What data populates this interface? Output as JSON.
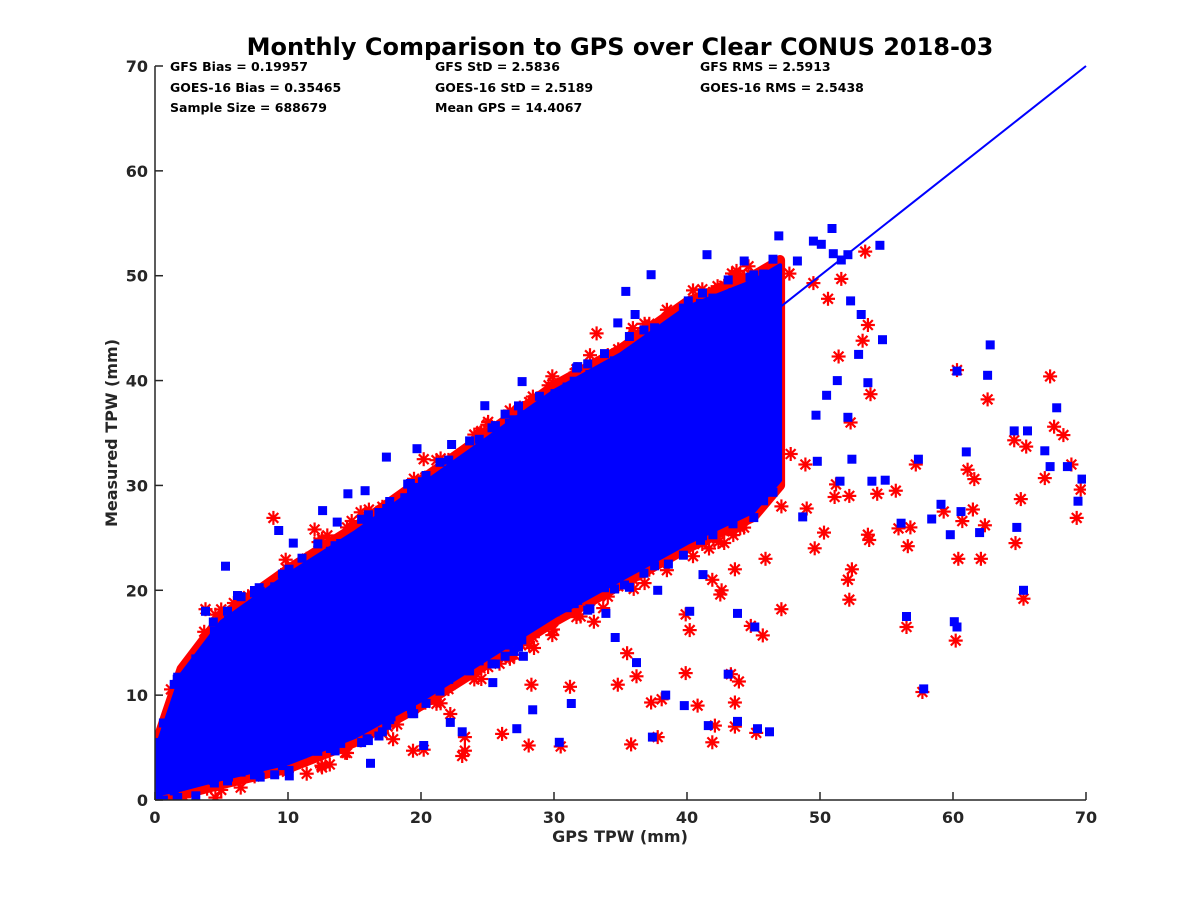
{
  "chart_data": {
    "type": "scatter",
    "title": "Monthly Comparison to GPS over Clear CONUS 2018-03",
    "xlabel": "GPS TPW (mm)",
    "ylabel": "Measured TPW (mm)",
    "xlim": [
      0,
      70
    ],
    "ylim": [
      0,
      70
    ],
    "xticks": [
      "0",
      "10",
      "20",
      "30",
      "40",
      "50",
      "60",
      "70"
    ],
    "yticks": [
      "0",
      "10",
      "20",
      "30",
      "40",
      "50",
      "60",
      "70"
    ],
    "grid": false,
    "legend": "none",
    "reference_line": {
      "name": "1:1 line",
      "x": [
        0,
        70
      ],
      "y": [
        0,
        70
      ],
      "color": "#0000ff"
    },
    "stats": {
      "gfs_bias": "GFS Bias = 0.19957",
      "gfs_std": "GFS StD = 2.5836",
      "gfs_rms": "GFS RMS = 2.5913",
      "goes_bias": "GOES-16 Bias = 0.35465",
      "goes_std": "GOES-16 StD = 2.5189",
      "goes_rms": "GOES-16 RMS = 2.5438",
      "sample_size": "Sample Size = 688679",
      "mean_gps": "Mean GPS = 14.4067"
    },
    "series": [
      {
        "name": "GFS",
        "marker": "asterisk",
        "color": "#ff0000",
        "dense_band": {
          "x": [
            0,
            2,
            5,
            10,
            15,
            20,
            25,
            30,
            35,
            40,
            45,
            47
          ],
          "lower": [
            0,
            0.5,
            1.5,
            3,
            5.5,
            9,
            13,
            17,
            20.5,
            24,
            27,
            30
          ],
          "upper": [
            5,
            12.5,
            17.5,
            22,
            26,
            30.5,
            35,
            39.5,
            43,
            47.5,
            50,
            51.5
          ]
        },
        "points": [
          [
            8.9,
            26.9
          ],
          [
            12,
            25.8
          ],
          [
            3.8,
            18.2
          ],
          [
            20.2,
            32.5
          ],
          [
            25,
            35.8
          ],
          [
            33.2,
            44.5
          ],
          [
            42.3,
            49
          ],
          [
            44.8,
            50.1
          ],
          [
            47.7,
            50.2
          ],
          [
            49.5,
            49.3
          ],
          [
            51.6,
            49.7
          ],
          [
            53.4,
            52.3
          ],
          [
            53.6,
            45.3
          ],
          [
            50.6,
            47.8
          ],
          [
            51.4,
            42.3
          ],
          [
            52.3,
            36
          ],
          [
            53.2,
            43.8
          ],
          [
            53.8,
            38.7
          ],
          [
            45.9,
            23
          ],
          [
            47.1,
            28
          ],
          [
            47.8,
            33
          ],
          [
            48.9,
            32
          ],
          [
            49,
            27.8
          ],
          [
            49.6,
            24
          ],
          [
            50.3,
            25.5
          ],
          [
            51.1,
            28.9
          ],
          [
            51.2,
            30.1
          ],
          [
            52.2,
            29
          ],
          [
            52.4,
            22
          ],
          [
            52.2,
            19.1
          ],
          [
            52.1,
            21
          ],
          [
            53.6,
            25.3
          ],
          [
            53.7,
            24.8
          ],
          [
            54.3,
            29.2
          ],
          [
            55.7,
            29.5
          ],
          [
            55.9,
            25.9
          ],
          [
            56.5,
            16.5
          ],
          [
            56.6,
            24.2
          ],
          [
            57.2,
            32
          ],
          [
            57.7,
            10.3
          ],
          [
            59.3,
            27.5
          ],
          [
            60.2,
            15.2
          ],
          [
            60.4,
            23
          ],
          [
            60.3,
            41
          ],
          [
            60.7,
            26.6
          ],
          [
            61.1,
            31.5
          ],
          [
            61.5,
            27.7
          ],
          [
            61.6,
            30.6
          ],
          [
            62.1,
            23
          ],
          [
            62.4,
            26.2
          ],
          [
            62.6,
            38.2
          ],
          [
            64.7,
            24.5
          ],
          [
            64.6,
            34.3
          ],
          [
            65.1,
            28.7
          ],
          [
            65.3,
            19.2
          ],
          [
            65.5,
            33.7
          ],
          [
            66.9,
            30.7
          ],
          [
            67.3,
            40.4
          ],
          [
            67.6,
            35.6
          ],
          [
            68.3,
            34.8
          ],
          [
            68.9,
            32
          ],
          [
            69.3,
            26.9
          ],
          [
            69.6,
            29.6
          ],
          [
            56.8,
            26
          ],
          [
            41.5,
            27.2
          ],
          [
            43.6,
            22
          ],
          [
            42.6,
            20
          ],
          [
            45.7,
            15.7
          ],
          [
            44.8,
            16.6
          ],
          [
            41.9,
            21
          ],
          [
            40.2,
            16.2
          ],
          [
            39.9,
            17.7
          ],
          [
            43.3,
            12
          ],
          [
            43.6,
            9.3
          ],
          [
            43.9,
            11.3
          ],
          [
            43.6,
            7
          ],
          [
            45.2,
            6.4
          ],
          [
            40.8,
            9
          ],
          [
            41.9,
            5.5
          ],
          [
            42.1,
            7.1
          ],
          [
            37.8,
            6
          ],
          [
            35.8,
            5.3
          ],
          [
            37.3,
            9.3
          ],
          [
            35.5,
            14
          ],
          [
            34.8,
            11
          ],
          [
            33.7,
            18.3
          ],
          [
            33,
            17
          ],
          [
            32,
            17.5
          ],
          [
            31.2,
            10.8
          ],
          [
            30.5,
            5.1
          ],
          [
            28.3,
            11
          ],
          [
            28.1,
            5.2
          ],
          [
            28.5,
            14.5
          ],
          [
            26.1,
            6.3
          ],
          [
            23.1,
            4.2
          ],
          [
            23.3,
            6
          ],
          [
            23.3,
            4.7
          ],
          [
            22.2,
            8.2
          ],
          [
            20.2,
            4.8
          ],
          [
            19.4,
            4.7
          ],
          [
            17.5,
            7
          ],
          [
            14.3,
            4.5
          ],
          [
            18.2,
            7.2
          ],
          [
            17.9,
            5.8
          ],
          [
            31.6,
            23.5
          ],
          [
            36.2,
            11.8
          ],
          [
            39.9,
            12.1
          ],
          [
            38.1,
            9.6
          ],
          [
            25.9,
            13
          ],
          [
            24.7,
            14.5
          ],
          [
            42.5,
            19.6
          ],
          [
            47.1,
            18.2
          ]
        ]
      },
      {
        "name": "GOES-16",
        "marker": "square",
        "color": "#0000ff",
        "dense_band": {
          "x": [
            0,
            2,
            5,
            10,
            15,
            20,
            25,
            30,
            35,
            40,
            45,
            47
          ],
          "lower": [
            0.5,
            1,
            2,
            3.5,
            6,
            9.5,
            13.5,
            17.5,
            21,
            24.5,
            27.5,
            30.5
          ],
          "upper": [
            4.5,
            12,
            17,
            21.5,
            25.5,
            30,
            34.5,
            39,
            42.5,
            47,
            49.5,
            51
          ]
        },
        "points": [
          [
            46.9,
            53.8
          ],
          [
            48.3,
            51.4
          ],
          [
            49.5,
            53.3
          ],
          [
            50.1,
            53
          ],
          [
            51,
            52.1
          ],
          [
            52.1,
            52
          ],
          [
            50.9,
            54.5
          ],
          [
            51.6,
            51.5
          ],
          [
            52.3,
            47.6
          ],
          [
            53.1,
            46.3
          ],
          [
            49.7,
            36.7
          ],
          [
            50.5,
            38.6
          ],
          [
            51.3,
            40
          ],
          [
            52.1,
            36.5
          ],
          [
            52.9,
            42.5
          ],
          [
            53.6,
            39.8
          ],
          [
            54.7,
            43.9
          ],
          [
            54.5,
            52.9
          ],
          [
            37.3,
            50.1
          ],
          [
            41.5,
            52
          ],
          [
            35.4,
            48.5
          ],
          [
            36.1,
            46.3
          ],
          [
            34.8,
            45.5
          ],
          [
            40.1,
            47.6
          ],
          [
            44.3,
            51.4
          ],
          [
            46.5,
            48
          ],
          [
            43.1,
            49.6
          ],
          [
            48.7,
            27
          ],
          [
            49.8,
            32.3
          ],
          [
            51.5,
            30.4
          ],
          [
            52.4,
            32.5
          ],
          [
            53.9,
            30.4
          ],
          [
            54.9,
            30.5
          ],
          [
            56.1,
            26.4
          ],
          [
            57.4,
            32.5
          ],
          [
            58.4,
            26.8
          ],
          [
            59.1,
            28.2
          ],
          [
            59.8,
            25.3
          ],
          [
            60.3,
            16.5
          ],
          [
            60.3,
            40.9
          ],
          [
            60.6,
            27.5
          ],
          [
            61,
            33.2
          ],
          [
            62,
            25.5
          ],
          [
            62.8,
            43.4
          ],
          [
            62.6,
            40.5
          ],
          [
            64.6,
            35.2
          ],
          [
            64.8,
            26
          ],
          [
            65.3,
            20
          ],
          [
            65.6,
            35.2
          ],
          [
            66.9,
            33.3
          ],
          [
            67.3,
            31.8
          ],
          [
            67.8,
            37.4
          ],
          [
            68.6,
            31.8
          ],
          [
            69.4,
            28.5
          ],
          [
            69.7,
            30.6
          ],
          [
            56.5,
            17.5
          ],
          [
            60.1,
            17
          ],
          [
            57.8,
            10.6
          ],
          [
            41.2,
            21.5
          ],
          [
            43.8,
            17.8
          ],
          [
            45.1,
            16.5
          ],
          [
            40.2,
            18
          ],
          [
            38.4,
            10
          ],
          [
            39.8,
            9
          ],
          [
            41.6,
            7.1
          ],
          [
            43.1,
            12
          ],
          [
            43.8,
            7.5
          ],
          [
            45.3,
            6.8
          ],
          [
            46.2,
            6.5
          ],
          [
            37.4,
            6
          ],
          [
            36.2,
            13.1
          ],
          [
            34.6,
            15.5
          ],
          [
            31.3,
            9.2
          ],
          [
            30.4,
            5.5
          ],
          [
            28.4,
            8.6
          ],
          [
            27.2,
            6.8
          ],
          [
            25.4,
            11.2
          ],
          [
            23.1,
            6.5
          ],
          [
            22.2,
            7.4
          ],
          [
            20.2,
            5.2
          ],
          [
            16.9,
            8
          ],
          [
            17.1,
            6.5
          ],
          [
            18.4,
            9.1
          ],
          [
            16.2,
            3.5
          ],
          [
            10.1,
            2.3
          ],
          [
            13.1,
            5.2
          ],
          [
            27.7,
            13.7
          ],
          [
            24.9,
            15
          ],
          [
            29.6,
            18.3
          ],
          [
            33.9,
            17.8
          ],
          [
            37.8,
            20
          ],
          [
            38.6,
            22.5
          ],
          [
            32.4,
            24.6
          ],
          [
            35.3,
            20.5
          ],
          [
            38.9,
            31.8
          ],
          [
            42.6,
            32
          ],
          [
            27.6,
            39.9
          ],
          [
            31.7,
            41.2
          ],
          [
            28.9,
            38.5
          ],
          [
            24.8,
            37.6
          ],
          [
            19.7,
            33.5
          ],
          [
            15.8,
            29.5
          ],
          [
            17.4,
            32.7
          ],
          [
            22.3,
            33.9
          ],
          [
            9.3,
            25.7
          ],
          [
            10.4,
            24.5
          ],
          [
            5.3,
            22.3
          ],
          [
            3.8,
            18
          ],
          [
            6.2,
            19.5
          ],
          [
            12.6,
            27.6
          ],
          [
            13.7,
            26.5
          ],
          [
            14.5,
            29.2
          ]
        ]
      }
    ]
  }
}
